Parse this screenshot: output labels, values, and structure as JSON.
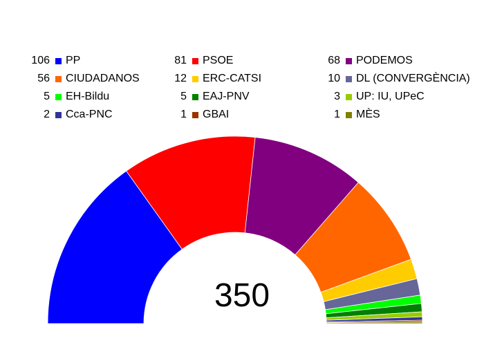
{
  "chart_data": {
    "type": "pie",
    "subtype": "parliament-semicircle",
    "total_seats": 350,
    "total_label": "350",
    "legend_columns": 3,
    "series": [
      {
        "name": "PP",
        "seats": 106,
        "seats_label": "106",
        "color": "#0000ff"
      },
      {
        "name": "PSOE",
        "seats": 81,
        "seats_label": "81",
        "color": "#ff0000"
      },
      {
        "name": "PODEMOS",
        "seats": 68,
        "seats_label": "68",
        "color": "#800080"
      },
      {
        "name": "CIUDADANOS",
        "seats": 56,
        "seats_label": "56",
        "color": "#ff6600"
      },
      {
        "name": "ERC-CATSI",
        "seats": 12,
        "seats_label": "12",
        "color": "#ffcc00"
      },
      {
        "name": "DL (CONVERGÈNCIA)",
        "seats": 10,
        "seats_label": "10",
        "color": "#666699"
      },
      {
        "name": "EH-Bildu",
        "seats": 5,
        "seats_label": "5",
        "color": "#00ff00"
      },
      {
        "name": "EAJ-PNV",
        "seats": 5,
        "seats_label": "5",
        "color": "#008000"
      },
      {
        "name": "UP: IU, UPeC",
        "seats": 3,
        "seats_label": "3",
        "color": "#99cc00"
      },
      {
        "name": "Cca-PNC",
        "seats": 2,
        "seats_label": "2",
        "color": "#333399"
      },
      {
        "name": "GBAI",
        "seats": 1,
        "seats_label": "1",
        "color": "#993300"
      },
      {
        "name": "MÈS",
        "seats": 1,
        "seats_label": "1",
        "color": "#808000"
      }
    ]
  }
}
